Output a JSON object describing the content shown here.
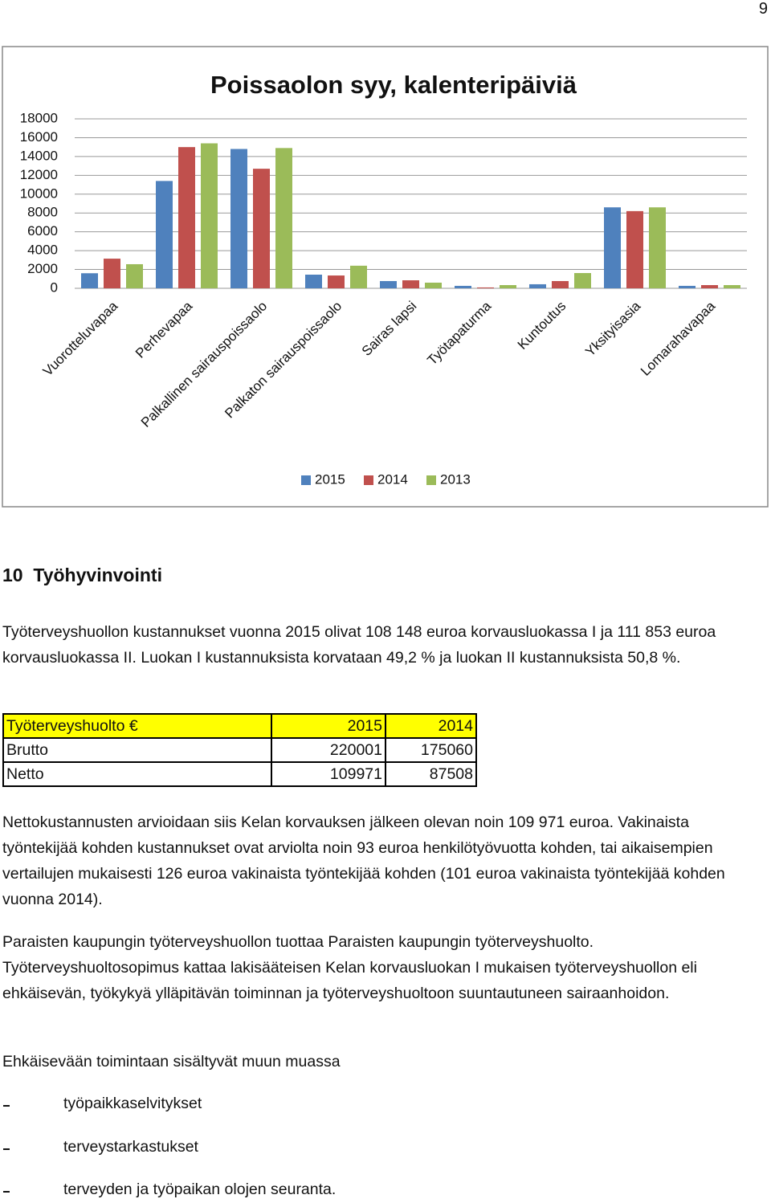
{
  "page_number": "9",
  "chart_data": {
    "type": "bar",
    "title": "Poissaolon syy, kalenteripäiviä",
    "categories": [
      "Vuorotteluvapaa",
      "Perhevapaa",
      "Palkallinen sairauspoissaolo",
      "Palkaton sairauspoissaolo",
      "Sairas lapsi",
      "Työtapaturma",
      "Kuntoutus",
      "Yksityisasia",
      "Lomarahavapaa"
    ],
    "series": [
      {
        "name": "2015",
        "color": "#4f81bd",
        "values": [
          1600,
          11400,
          14800,
          1450,
          770,
          260,
          430,
          8600,
          260
        ]
      },
      {
        "name": "2014",
        "color": "#c0504d",
        "values": [
          3150,
          15000,
          12700,
          1360,
          850,
          90,
          770,
          8200,
          340
        ]
      },
      {
        "name": "2013",
        "color": "#9bbb59",
        "values": [
          2560,
          15400,
          14900,
          2400,
          600,
          340,
          1620,
          8600,
          340
        ]
      }
    ],
    "ylim": [
      0,
      18000
    ],
    "yticks": [
      0,
      2000,
      4000,
      6000,
      8000,
      10000,
      12000,
      14000,
      16000,
      18000
    ],
    "grid": true,
    "legend": "bottom"
  },
  "section": {
    "number": "10",
    "title": "Työhyvinvointi"
  },
  "paragraph_1": "Työterveyshuollon kustannukset vuonna 2015 olivat 108 148 euroa korvausluokassa I ja 111 853 euroa korvausluokassa II. Luokan I kustannuksista korvataan 49,2 % ja luokan II kustannuksista 50,8 %.",
  "table": {
    "header": [
      "Työterveyshuolto €",
      2015,
      2014
    ],
    "rows": [
      [
        "Brutto",
        220001,
        175060
      ],
      [
        "Netto",
        109971,
        87508
      ]
    ]
  },
  "paragraph_2": "Nettokustannusten arvioidaan siis Kelan korvauksen jälkeen olevan noin 109 971 euroa. Vakinaista työntekijää kohden kustannukset ovat arviolta noin 93 euroa henkilötyövuotta kohden, tai aikaisempien vertailujen mukaisesti 126 euroa vakinaista työntekijää kohden (101 euroa vakinaista työntekijää kohden vuonna 2014).",
  "paragraph_3": "Paraisten kaupungin työterveyshuollon tuottaa Paraisten kaupungin työterveyshuolto. Työterveyshuoltosopimus kattaa lakisääteisen Kelan korvausluokan I mukaisen työterveyshuollon eli ehkäisevän, työkykyä ylläpitävän toiminnan ja työterveyshuoltoon suuntautuneen sairaanhoidon.",
  "list_intro": "Ehkäisevään toimintaan sisältyvät muun muassa",
  "list": [
    "työpaikkaselvitykset",
    "terveystarkastukset",
    "terveyden ja työpaikan olojen seuranta."
  ]
}
